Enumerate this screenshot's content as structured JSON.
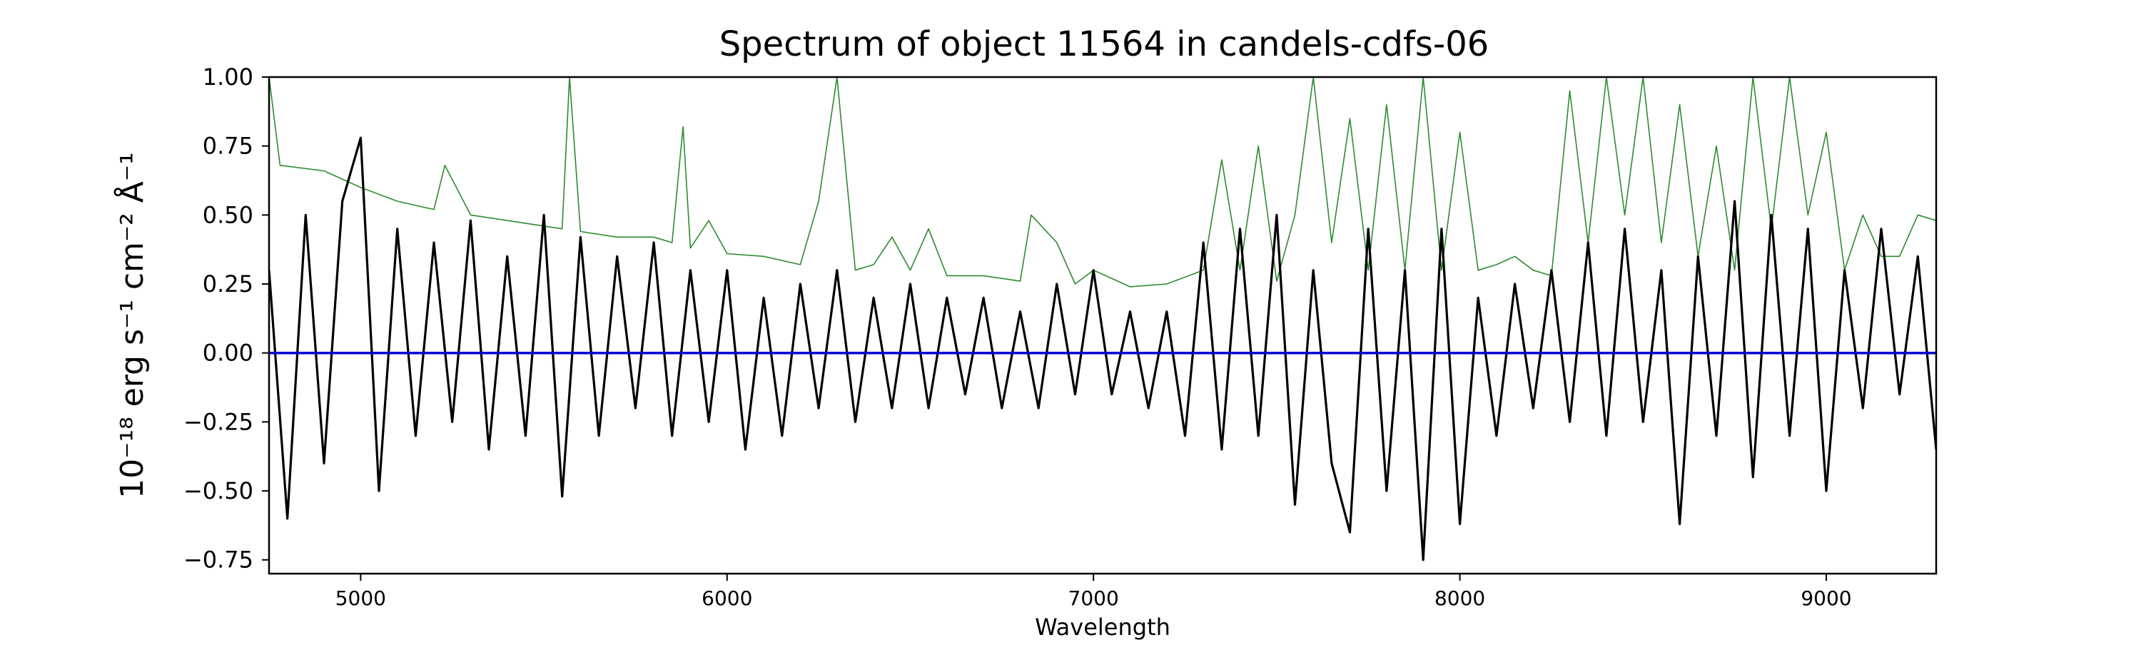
{
  "chart_data": {
    "type": "line",
    "title": "Spectrum of object 11564 in candels-cdfs-06",
    "xlabel": "Wavelength",
    "ylabel": "10⁻¹⁸ erg s⁻¹ cm⁻² Å⁻¹",
    "xlim": [
      4750,
      9300
    ],
    "ylim": [
      -0.8,
      1.0
    ],
    "x_ticks": [
      5000,
      6000,
      7000,
      8000,
      9000
    ],
    "x_tick_labels": [
      "5000",
      "6000",
      "7000",
      "8000",
      "9000"
    ],
    "y_ticks": [
      1.0,
      0.75,
      0.5,
      0.25,
      0.0,
      -0.25,
      -0.5,
      -0.75
    ],
    "y_tick_labels": [
      "1.00",
      "0.75",
      "0.50",
      "0.25",
      "0.00",
      "−0.25",
      "−0.50",
      "−0.75"
    ],
    "grid": false,
    "legend": "none",
    "series": [
      {
        "role": "flux",
        "color": "#000000",
        "x": [
          4750,
          4800,
          4850,
          4900,
          4950,
          5000,
          5050,
          5100,
          5150,
          5200,
          5250,
          5300,
          5350,
          5400,
          5450,
          5500,
          5550,
          5600,
          5650,
          5700,
          5750,
          5800,
          5850,
          5900,
          5950,
          6000,
          6050,
          6100,
          6150,
          6200,
          6250,
          6300,
          6350,
          6400,
          6450,
          6500,
          6550,
          6600,
          6650,
          6700,
          6750,
          6800,
          6850,
          6900,
          6950,
          7000,
          7050,
          7100,
          7150,
          7200,
          7250,
          7300,
          7350,
          7400,
          7450,
          7500,
          7550,
          7600,
          7650,
          7700,
          7750,
          7800,
          7850,
          7900,
          7950,
          8000,
          8050,
          8100,
          8150,
          8200,
          8250,
          8300,
          8350,
          8400,
          8450,
          8500,
          8550,
          8600,
          8650,
          8700,
          8750,
          8800,
          8850,
          8900,
          8950,
          9000,
          9050,
          9100,
          9150,
          9200,
          9250,
          9300
        ],
        "y": [
          0.3,
          -0.6,
          0.5,
          -0.4,
          0.55,
          0.78,
          -0.5,
          0.45,
          -0.3,
          0.4,
          -0.25,
          0.48,
          -0.35,
          0.35,
          -0.3,
          0.5,
          -0.52,
          0.42,
          -0.3,
          0.35,
          -0.2,
          0.4,
          -0.3,
          0.3,
          -0.25,
          0.3,
          -0.35,
          0.2,
          -0.3,
          0.25,
          -0.2,
          0.3,
          -0.25,
          0.2,
          -0.2,
          0.25,
          -0.2,
          0.2,
          -0.15,
          0.2,
          -0.2,
          0.15,
          -0.2,
          0.25,
          -0.15,
          0.3,
          -0.15,
          0.15,
          -0.2,
          0.15,
          -0.3,
          0.4,
          -0.35,
          0.45,
          -0.3,
          0.5,
          -0.55,
          0.3,
          -0.4,
          -0.65,
          0.45,
          -0.5,
          0.3,
          -0.75,
          0.45,
          -0.62,
          0.2,
          -0.3,
          0.25,
          -0.2,
          0.3,
          -0.25,
          0.4,
          -0.3,
          0.45,
          -0.25,
          0.3,
          -0.62,
          0.35,
          -0.3,
          0.55,
          -0.45,
          0.5,
          -0.3,
          0.45,
          -0.5,
          0.3,
          -0.2,
          0.45,
          -0.15,
          0.35,
          -0.35
        ]
      },
      {
        "role": "error",
        "color": "#2e8b2e",
        "x": [
          4750,
          4780,
          4900,
          5000,
          5100,
          5200,
          5230,
          5300,
          5400,
          5500,
          5550,
          5570,
          5600,
          5700,
          5800,
          5850,
          5880,
          5900,
          5950,
          6000,
          6100,
          6200,
          6250,
          6300,
          6350,
          6400,
          6450,
          6500,
          6550,
          6600,
          6700,
          6800,
          6830,
          6900,
          6950,
          7000,
          7100,
          7200,
          7300,
          7350,
          7400,
          7450,
          7500,
          7550,
          7600,
          7650,
          7700,
          7750,
          7800,
          7850,
          7900,
          7950,
          8000,
          8050,
          8100,
          8150,
          8200,
          8250,
          8300,
          8350,
          8400,
          8450,
          8500,
          8550,
          8600,
          8650,
          8700,
          8750,
          8800,
          8850,
          8900,
          8950,
          9000,
          9050,
          9100,
          9150,
          9200,
          9250,
          9300
        ],
        "y": [
          1.0,
          0.68,
          0.66,
          0.6,
          0.55,
          0.52,
          0.68,
          0.5,
          0.48,
          0.46,
          0.45,
          1.0,
          0.44,
          0.42,
          0.42,
          0.4,
          0.82,
          0.38,
          0.48,
          0.36,
          0.35,
          0.32,
          0.55,
          1.0,
          0.3,
          0.32,
          0.42,
          0.3,
          0.45,
          0.28,
          0.28,
          0.26,
          0.5,
          0.4,
          0.25,
          0.3,
          0.24,
          0.25,
          0.3,
          0.7,
          0.3,
          0.75,
          0.26,
          0.5,
          1.0,
          0.4,
          0.85,
          0.3,
          0.9,
          0.3,
          1.0,
          0.3,
          0.8,
          0.3,
          0.32,
          0.35,
          0.3,
          0.28,
          0.95,
          0.4,
          1.0,
          0.5,
          1.0,
          0.4,
          0.9,
          0.35,
          0.75,
          0.3,
          1.0,
          0.45,
          1.0,
          0.5,
          0.8,
          0.3,
          0.5,
          0.35,
          0.35,
          0.5,
          0.48
        ]
      },
      {
        "role": "continuum",
        "color": "#0000cc",
        "x": [
          4750,
          9300
        ],
        "y": [
          0.0,
          0.0
        ]
      }
    ]
  }
}
